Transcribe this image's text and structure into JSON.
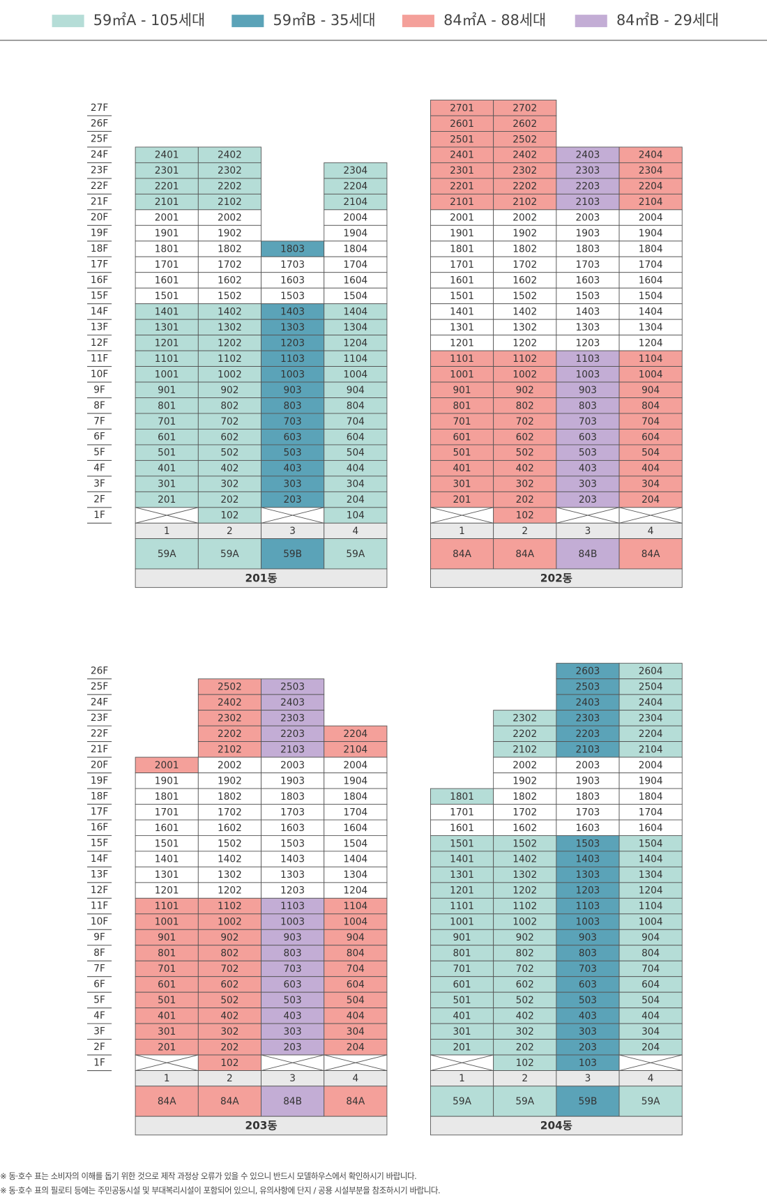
{
  "legend": [
    {
      "label": "59㎡A - 105세대",
      "color": "#b5ddd7"
    },
    {
      "label": "59㎡B - 35세대",
      "color": "#5ba3b8"
    },
    {
      "label": "84㎡A - 88세대",
      "color": "#f4a09a"
    },
    {
      "label": "84㎡B - 29세대",
      "color": "#c3add5"
    }
  ],
  "groups": [
    {
      "floors": [
        "27F",
        "26F",
        "25F",
        "24F",
        "23F",
        "22F",
        "21F",
        "20F",
        "19F",
        "18F",
        "17F",
        "16F",
        "15F",
        "14F",
        "13F",
        "12F",
        "11F",
        "10F",
        "9F",
        "8F",
        "7F",
        "6F",
        "5F",
        "4F",
        "3F",
        "2F",
        "1F"
      ],
      "buildings": [
        {
          "name": "201동",
          "lines": [
            "1",
            "2",
            "3",
            "4"
          ],
          "types": [
            "59A",
            "59A",
            "59B",
            "59A"
          ],
          "type_kinds": "0010",
          "kinds": [
            "....",
            "....",
            "....",
            "00..",
            "00.0",
            "00.0",
            "00.0",
            "ww.w",
            "ww.w",
            "ww1w",
            "wwww",
            "wwww",
            "wwww",
            "0010",
            "0010",
            "0010",
            "0010",
            "0010",
            "0010",
            "0010",
            "0010",
            "0010",
            "0010",
            "0010",
            "0010",
            "0010",
            "x0x0"
          ],
          "units": [
            [
              null,
              null,
              null,
              null
            ],
            [
              null,
              null,
              null,
              null
            ],
            [
              null,
              null,
              null,
              null
            ],
            [
              "2401",
              "2402",
              null,
              null
            ],
            [
              "2301",
              "2302",
              null,
              "2304"
            ],
            [
              "2201",
              "2202",
              null,
              "2204"
            ],
            [
              "2101",
              "2102",
              null,
              "2104"
            ],
            [
              "2001",
              "2002",
              null,
              "2004"
            ],
            [
              "1901",
              "1902",
              null,
              "1904"
            ],
            [
              "1801",
              "1802",
              "1803",
              "1804"
            ],
            [
              "1701",
              "1702",
              "1703",
              "1704"
            ],
            [
              "1601",
              "1602",
              "1603",
              "1604"
            ],
            [
              "1501",
              "1502",
              "1503",
              "1504"
            ],
            [
              "1401",
              "1402",
              "1403",
              "1404"
            ],
            [
              "1301",
              "1302",
              "1303",
              "1304"
            ],
            [
              "1201",
              "1202",
              "1203",
              "1204"
            ],
            [
              "1101",
              "1102",
              "1103",
              "1104"
            ],
            [
              "1001",
              "1002",
              "1003",
              "1004"
            ],
            [
              "901",
              "902",
              "903",
              "904"
            ],
            [
              "801",
              "802",
              "803",
              "804"
            ],
            [
              "701",
              "702",
              "703",
              "704"
            ],
            [
              "601",
              "602",
              "603",
              "604"
            ],
            [
              "501",
              "502",
              "503",
              "504"
            ],
            [
              "401",
              "402",
              "403",
              "404"
            ],
            [
              "301",
              "302",
              "303",
              "304"
            ],
            [
              "201",
              "202",
              "203",
              "204"
            ],
            [
              null,
              "102",
              null,
              "104"
            ]
          ]
        },
        {
          "name": "202동",
          "lines": [
            "1",
            "2",
            "3",
            "4"
          ],
          "types": [
            "84A",
            "84A",
            "84B",
            "84A"
          ],
          "type_kinds": "2232",
          "kinds": [
            "22..",
            "22..",
            "22..",
            "2232",
            "2232",
            "2232",
            "2232",
            "wwww",
            "wwww",
            "wwww",
            "wwww",
            "wwww",
            "wwww",
            "wwww",
            "wwww",
            "wwww",
            "2232",
            "2232",
            "2232",
            "2232",
            "2232",
            "2232",
            "2232",
            "2232",
            "2232",
            "2232",
            "x2xx"
          ],
          "units": [
            [
              "2701",
              "2702",
              null,
              null
            ],
            [
              "2601",
              "2602",
              null,
              null
            ],
            [
              "2501",
              "2502",
              null,
              null
            ],
            [
              "2401",
              "2402",
              "2403",
              "2404"
            ],
            [
              "2301",
              "2302",
              "2303",
              "2304"
            ],
            [
              "2201",
              "2202",
              "2203",
              "2204"
            ],
            [
              "2101",
              "2102",
              "2103",
              "2104"
            ],
            [
              "2001",
              "2002",
              "2003",
              "2004"
            ],
            [
              "1901",
              "1902",
              "1903",
              "1904"
            ],
            [
              "1801",
              "1802",
              "1803",
              "1804"
            ],
            [
              "1701",
              "1702",
              "1703",
              "1704"
            ],
            [
              "1601",
              "1602",
              "1603",
              "1604"
            ],
            [
              "1501",
              "1502",
              "1503",
              "1504"
            ],
            [
              "1401",
              "1402",
              "1403",
              "1404"
            ],
            [
              "1301",
              "1302",
              "1303",
              "1304"
            ],
            [
              "1201",
              "1202",
              "1203",
              "1204"
            ],
            [
              "1101",
              "1102",
              "1103",
              "1104"
            ],
            [
              "1001",
              "1002",
              "1003",
              "1004"
            ],
            [
              "901",
              "902",
              "903",
              "904"
            ],
            [
              "801",
              "802",
              "803",
              "804"
            ],
            [
              "701",
              "702",
              "703",
              "704"
            ],
            [
              "601",
              "602",
              "603",
              "604"
            ],
            [
              "501",
              "502",
              "503",
              "504"
            ],
            [
              "401",
              "402",
              "403",
              "404"
            ],
            [
              "301",
              "302",
              "303",
              "304"
            ],
            [
              "201",
              "202",
              "203",
              "204"
            ],
            [
              null,
              "102",
              null,
              null
            ]
          ]
        }
      ]
    },
    {
      "floors": [
        "26F",
        "25F",
        "24F",
        "23F",
        "22F",
        "21F",
        "20F",
        "19F",
        "18F",
        "17F",
        "16F",
        "15F",
        "14F",
        "13F",
        "12F",
        "11F",
        "10F",
        "9F",
        "8F",
        "7F",
        "6F",
        "5F",
        "4F",
        "3F",
        "2F",
        "1F"
      ],
      "buildings": [
        {
          "name": "203동",
          "lines": [
            "1",
            "2",
            "3",
            "4"
          ],
          "types": [
            "84A",
            "84A",
            "84B",
            "84A"
          ],
          "type_kinds": "2232",
          "kinds": [
            "....",
            ".23.",
            ".23.",
            ".23.",
            ".232",
            ".232",
            "2www",
            "wwww",
            "wwww",
            "wwww",
            "wwww",
            "wwww",
            "wwww",
            "wwww",
            "wwww",
            "2232",
            "2232",
            "2232",
            "2232",
            "2232",
            "2232",
            "2232",
            "2232",
            "2232",
            "2232",
            "x2xx"
          ],
          "units": [
            [
              null,
              null,
              null,
              null
            ],
            [
              null,
              "2502",
              "2503",
              null
            ],
            [
              null,
              "2402",
              "2403",
              null
            ],
            [
              null,
              "2302",
              "2303",
              null
            ],
            [
              null,
              "2202",
              "2203",
              "2204"
            ],
            [
              null,
              "2102",
              "2103",
              "2104"
            ],
            [
              "2001",
              "2002",
              "2003",
              "2004"
            ],
            [
              "1901",
              "1902",
              "1903",
              "1904"
            ],
            [
              "1801",
              "1802",
              "1803",
              "1804"
            ],
            [
              "1701",
              "1702",
              "1703",
              "1704"
            ],
            [
              "1601",
              "1602",
              "1603",
              "1604"
            ],
            [
              "1501",
              "1502",
              "1503",
              "1504"
            ],
            [
              "1401",
              "1402",
              "1403",
              "1404"
            ],
            [
              "1301",
              "1302",
              "1303",
              "1304"
            ],
            [
              "1201",
              "1202",
              "1203",
              "1204"
            ],
            [
              "1101",
              "1102",
              "1103",
              "1104"
            ],
            [
              "1001",
              "1002",
              "1003",
              "1004"
            ],
            [
              "901",
              "902",
              "903",
              "904"
            ],
            [
              "801",
              "802",
              "803",
              "804"
            ],
            [
              "701",
              "702",
              "703",
              "704"
            ],
            [
              "601",
              "602",
              "603",
              "604"
            ],
            [
              "501",
              "502",
              "503",
              "504"
            ],
            [
              "401",
              "402",
              "403",
              "404"
            ],
            [
              "301",
              "302",
              "303",
              "304"
            ],
            [
              "201",
              "202",
              "203",
              "204"
            ],
            [
              null,
              "102",
              null,
              null
            ]
          ]
        },
        {
          "name": "204동",
          "lines": [
            "1",
            "2",
            "3",
            "4"
          ],
          "types": [
            "59A",
            "59A",
            "59B",
            "59A"
          ],
          "type_kinds": "0010",
          "kinds": [
            "..10",
            "..10",
            "..10",
            ".010",
            ".010",
            ".010",
            ".www",
            ".www",
            "0www",
            "wwww",
            "wwww",
            "0010",
            "0010",
            "0010",
            "0010",
            "0010",
            "0010",
            "0010",
            "0010",
            "0010",
            "0010",
            "0010",
            "0010",
            "0010",
            "0010",
            "x01x"
          ],
          "units": [
            [
              null,
              null,
              "2603",
              "2604"
            ],
            [
              null,
              null,
              "2503",
              "2504"
            ],
            [
              null,
              null,
              "2403",
              "2404"
            ],
            [
              null,
              "2302",
              "2303",
              "2304"
            ],
            [
              null,
              "2202",
              "2203",
              "2204"
            ],
            [
              null,
              "2102",
              "2103",
              "2104"
            ],
            [
              null,
              "2002",
              "2003",
              "2004"
            ],
            [
              null,
              "1902",
              "1903",
              "1904"
            ],
            [
              "1801",
              "1802",
              "1803",
              "1804"
            ],
            [
              "1701",
              "1702",
              "1703",
              "1704"
            ],
            [
              "1601",
              "1602",
              "1603",
              "1604"
            ],
            [
              "1501",
              "1502",
              "1503",
              "1504"
            ],
            [
              "1401",
              "1402",
              "1403",
              "1404"
            ],
            [
              "1301",
              "1302",
              "1303",
              "1304"
            ],
            [
              "1201",
              "1202",
              "1203",
              "1204"
            ],
            [
              "1101",
              "1102",
              "1103",
              "1104"
            ],
            [
              "1001",
              "1002",
              "1003",
              "1004"
            ],
            [
              "901",
              "902",
              "903",
              "904"
            ],
            [
              "801",
              "802",
              "803",
              "804"
            ],
            [
              "701",
              "702",
              "703",
              "704"
            ],
            [
              "601",
              "602",
              "603",
              "604"
            ],
            [
              "501",
              "502",
              "503",
              "504"
            ],
            [
              "401",
              "402",
              "403",
              "404"
            ],
            [
              "301",
              "302",
              "303",
              "304"
            ],
            [
              "201",
              "202",
              "203",
              "204"
            ],
            [
              null,
              "102",
              "103",
              null
            ]
          ]
        }
      ]
    }
  ],
  "notes": [
    "※ 동·호수 표는 소비자의 이해를 돕기 위한 것으로 제작 과정상 오류가 있을 수 있으니 반드시 모델하우스에서 확인하시기 바랍니다.",
    "※ 동·호수 표의 필로티 등에는 주민공동시설 및 부대복리시설이 포함되어 있으니, 유의사항에 단지 / 공용 시설부분을 참조하시기 바랍니다."
  ]
}
